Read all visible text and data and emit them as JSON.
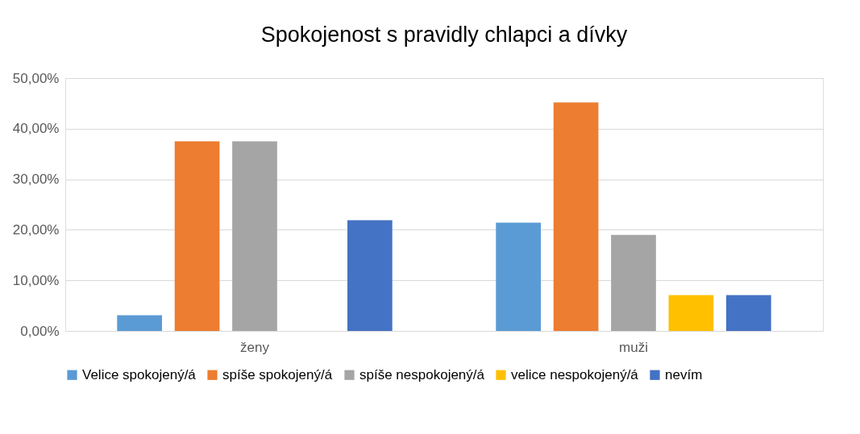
{
  "chart_data": {
    "type": "bar",
    "title": "Spokojenost s pravidly chlapci a dívky",
    "categories": [
      "ženy",
      "muži"
    ],
    "series": [
      {
        "name": "Velice spokojený/á",
        "color": "#5b9bd5",
        "values": [
          3.1,
          21.4
        ]
      },
      {
        "name": "spíše spokojený/á",
        "color": "#ed7d31",
        "values": [
          37.5,
          45.2
        ]
      },
      {
        "name": "spíše nespokojený/á",
        "color": "#a5a5a5",
        "values": [
          37.5,
          19.0
        ]
      },
      {
        "name": "velice nespokojený/á",
        "color": "#ffc000",
        "values": [
          0,
          7.1
        ]
      },
      {
        "name": "nevím",
        "color": "#4472c4",
        "values": [
          21.9,
          7.1
        ]
      }
    ],
    "ylim": [
      0,
      50
    ],
    "yticks": [
      {
        "value": 0,
        "label": "0,00%"
      },
      {
        "value": 10,
        "label": "10,00%"
      },
      {
        "value": 20,
        "label": "20,00%"
      },
      {
        "value": 30,
        "label": "30,00%"
      },
      {
        "value": 40,
        "label": "40,00%"
      },
      {
        "value": 50,
        "label": "50,00%"
      }
    ],
    "grid": "y",
    "legend": "bottom"
  }
}
